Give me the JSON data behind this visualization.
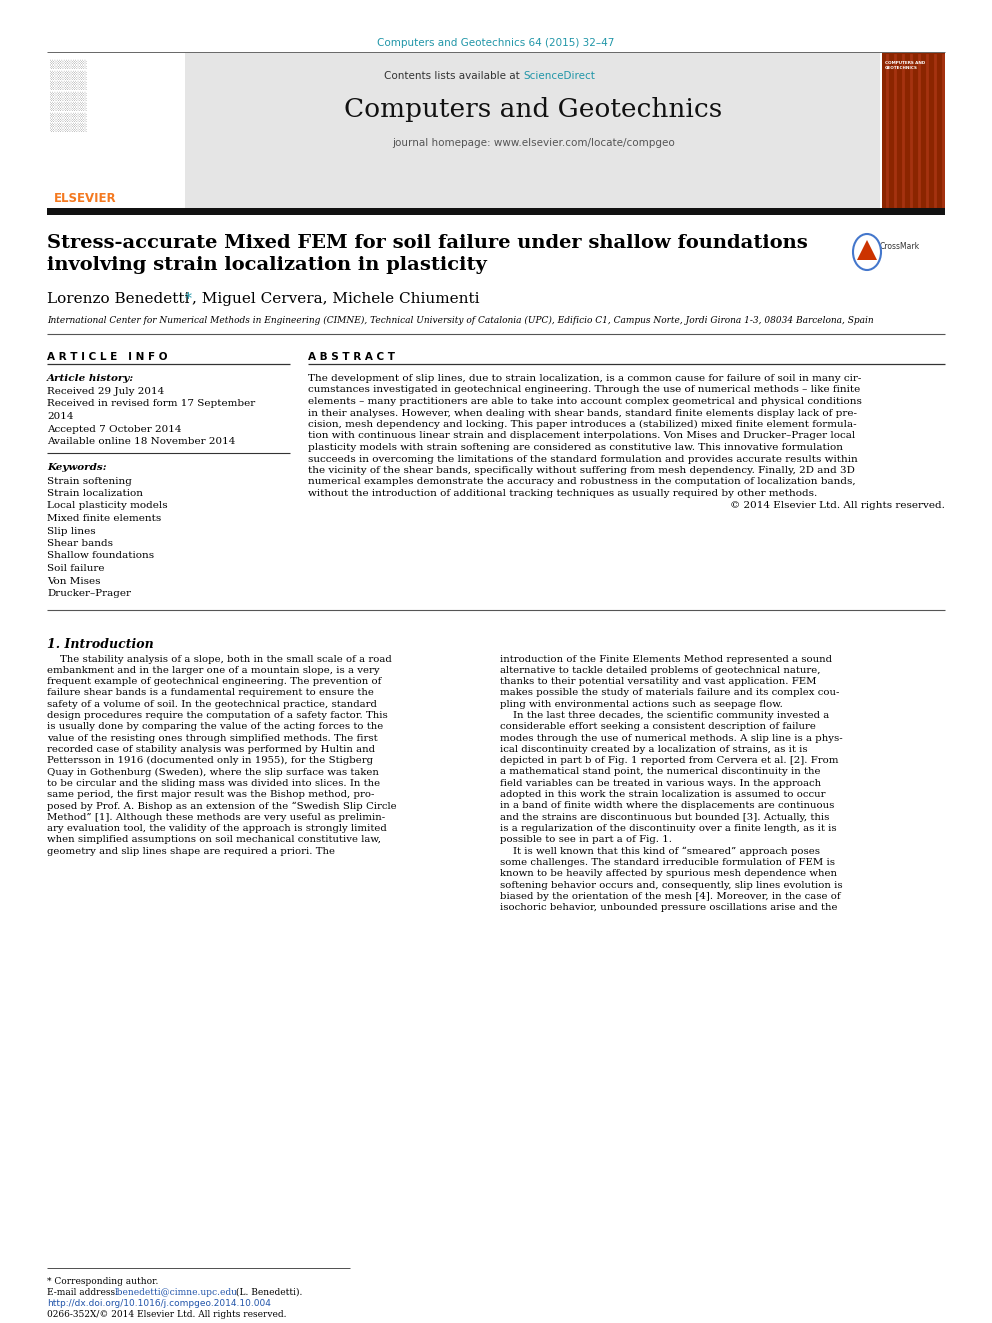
{
  "page_bg": "#ffffff",
  "top_citation": "Computers and Geotechnics 64 (2015) 32–47",
  "top_citation_color": "#2196a8",
  "header_bg": "#e5e5e5",
  "header_journal": "Computers and Geotechnics",
  "header_sciencedirect_color": "#2196a8",
  "header_homepage": "journal homepage: www.elsevier.com/locate/compgeo",
  "elsevier_color": "#f47920",
  "article_title_line1": "Stress-accurate Mixed FEM for soil failure under shallow foundations",
  "article_title_line2": "involving strain localization in plasticity",
  "author_name": "Lorenzo Benedetti ",
  "author_star": "*",
  "author_rest": ", Miguel Cervera, Michele Chiumenti",
  "affiliation": "International Center for Numerical Methods in Engineering (CIMNE), Technical University of Catalonia (UPC), Edificio C1, Campus Norte, Jordi Girona 1-3, 08034 Barcelona, Spain",
  "section_article_info": "A R T I C L E   I N F O",
  "section_abstract": "A B S T R A C T",
  "article_history_label": "Article history:",
  "article_history": [
    "Received 29 July 2014",
    "Received in revised form 17 September",
    "2014",
    "Accepted 7 October 2014",
    "Available online 18 November 2014"
  ],
  "keywords_label": "Keywords:",
  "keywords": [
    "Strain softening",
    "Strain localization",
    "Local plasticity models",
    "Mixed finite elements",
    "Slip lines",
    "Shear bands",
    "Shallow foundations",
    "Soil failure",
    "Von Mises",
    "Drucker–Prager"
  ],
  "abstract_lines": [
    "The development of slip lines, due to strain localization, is a common cause for failure of soil in many cir-",
    "cumstances investigated in geotechnical engineering. Through the use of numerical methods – like finite",
    "elements – many practitioners are able to take into account complex geometrical and physical conditions",
    "in their analyses. However, when dealing with shear bands, standard finite elements display lack of pre-",
    "cision, mesh dependency and locking. This paper introduces a (stabilized) mixed finite element formula-",
    "tion with continuous linear strain and displacement interpolations. Von Mises and Drucker–Prager local",
    "plasticity models with strain softening are considered as constitutive law. This innovative formulation",
    "succeeds in overcoming the limitations of the standard formulation and provides accurate results within",
    "the vicinity of the shear bands, specifically without suffering from mesh dependency. Finally, 2D and 3D",
    "numerical examples demonstrate the accuracy and robustness in the computation of localization bands,",
    "without the introduction of additional tracking techniques as usually required by other methods.",
    "© 2014 Elsevier Ltd. All rights reserved."
  ],
  "intro_heading": "1. Introduction",
  "intro_col1_lines": [
    "    The stability analysis of a slope, both in the small scale of a road",
    "embankment and in the larger one of a mountain slope, is a very",
    "frequent example of geotechnical engineering. The prevention of",
    "failure shear bands is a fundamental requirement to ensure the",
    "safety of a volume of soil. In the geotechnical practice, standard",
    "design procedures require the computation of a safety factor. This",
    "is usually done by comparing the value of the acting forces to the",
    "value of the resisting ones through simplified methods. The first",
    "recorded case of stability analysis was performed by Hultin and",
    "Pettersson in 1916 (documented only in 1955), for the Stigberg",
    "Quay in Gothenburg (Sweden), where the slip surface was taken",
    "to be circular and the sliding mass was divided into slices. In the",
    "same period, the first major result was the Bishop method, pro-",
    "posed by Prof. A. Bishop as an extension of the “Swedish Slip Circle",
    "Method” [1]. Although these methods are very useful as prelimin-",
    "ary evaluation tool, the validity of the approach is strongly limited",
    "when simplified assumptions on soil mechanical constitutive law,",
    "geometry and slip lines shape are required a priori. The"
  ],
  "intro_col2_lines": [
    "introduction of the Finite Elements Method represented a sound",
    "alternative to tackle detailed problems of geotechnical nature,",
    "thanks to their potential versatility and vast application. FEM",
    "makes possible the study of materials failure and its complex cou-",
    "pling with environmental actions such as seepage flow.",
    "    In the last three decades, the scientific community invested a",
    "considerable effort seeking a consistent description of failure",
    "modes through the use of numerical methods. A slip line is a phys-",
    "ical discontinuity created by a localization of strains, as it is",
    "depicted in part b of Fig. 1 reported from Cervera et al. [2]. From",
    "a mathematical stand point, the numerical discontinuity in the",
    "field variables can be treated in various ways. In the approach",
    "adopted in this work the strain localization is assumed to occur",
    "in a band of finite width where the displacements are continuous",
    "and the strains are discontinuous but bounded [3]. Actually, this",
    "is a regularization of the discontinuity over a finite length, as it is",
    "possible to see in part a of Fig. 1.",
    "    It is well known that this kind of “smeared” approach poses",
    "some challenges. The standard irreducible formulation of FEM is",
    "known to be heavily affected by spurious mesh dependence when",
    "softening behavior occurs and, consequently, slip lines evolution is",
    "biased by the orientation of the mesh [4]. Moreover, in the case of",
    "isochoric behavior, unbounded pressure oscillations arise and the"
  ],
  "footer_note": "* Corresponding author.",
  "footer_email_prefix": "E-mail address: ",
  "footer_email_link": "lbenedetti@cimne.upc.edu",
  "footer_email_suffix": " (L. Benedetti).",
  "footer_doi": "http://dx.doi.org/10.1016/j.compgeo.2014.10.004",
  "footer_issn": "0266-352X/© 2014 Elsevier Ltd. All rights reserved."
}
